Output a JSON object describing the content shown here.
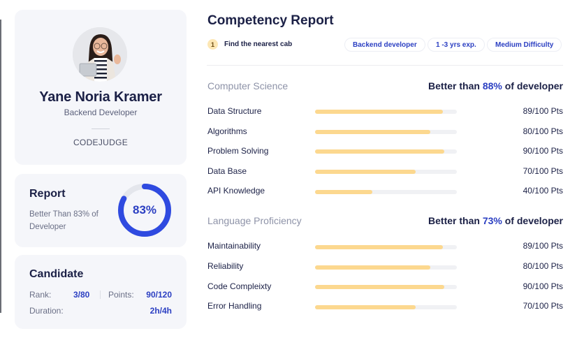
{
  "profile": {
    "name": "Yane Noria Kramer",
    "role": "Backend Developer",
    "organization": "CODEJUDGE",
    "avatar_icon": "person-photo-avatar"
  },
  "report_card": {
    "title": "Report",
    "subtitle": "Better Than 83% of Developer",
    "percent": 83,
    "percent_label": "83%",
    "ring_color": "#2f4ae0",
    "ring_track_color": "#e4e6ec"
  },
  "candidate": {
    "title": "Candidate",
    "rank_label": "Rank:",
    "rank_value": "3/80",
    "points_label": "Points:",
    "points_value": "90/120",
    "duration_label": "Duration:",
    "duration_value": "2h/4h"
  },
  "header": {
    "title": "Competency Report",
    "task_number": "1",
    "task_text": "Find the nearest cab",
    "tags": [
      "Backend developer",
      "1 -3 yrs exp.",
      "Medium Difficulty"
    ]
  },
  "sections": [
    {
      "title": "Computer Science",
      "summary_prefix": "Better than ",
      "summary_value": "88%",
      "summary_suffix": " of developer",
      "skills": [
        {
          "name": "Data Structure",
          "score": 89,
          "label": "89/100 Pts"
        },
        {
          "name": "Algorithms",
          "score": 80,
          "label": "80/100 Pts"
        },
        {
          "name": "Problem Solving",
          "score": 90,
          "label": "90/100 Pts"
        },
        {
          "name": "Data Base",
          "score": 70,
          "label": "70/100 Pts"
        },
        {
          "name": "API Knowledge",
          "score": 40,
          "label": "40/100 Pts"
        }
      ]
    },
    {
      "title": "Language Proficiency",
      "summary_prefix": "Better than ",
      "summary_value": "73%",
      "summary_suffix": " of developer",
      "skills": [
        {
          "name": "Maintainability",
          "score": 89,
          "label": "89/100 Pts"
        },
        {
          "name": "Reliability",
          "score": 80,
          "label": "80/100 Pts"
        },
        {
          "name": "Code Compleixty",
          "score": 90,
          "label": "90/100 Pts"
        },
        {
          "name": "Error Handling",
          "score": 70,
          "label": "70/100 Pts"
        }
      ]
    }
  ],
  "colors": {
    "accent": "#2b3fc2",
    "bar_fill": "#fcd88f",
    "bar_track": "#f0f1f4",
    "card_bg": "#f5f6fa",
    "heading": "#1b2046"
  }
}
